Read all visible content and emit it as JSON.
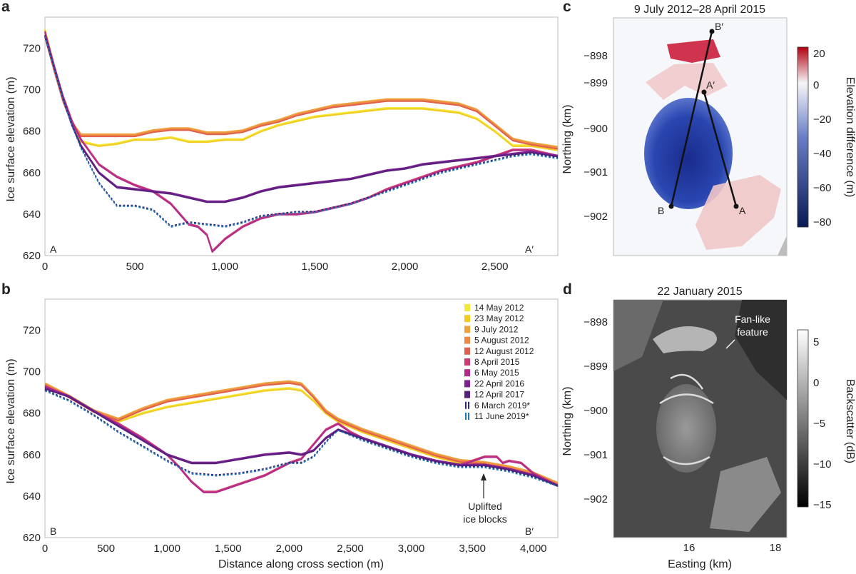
{
  "panels": {
    "a": {
      "letter": "a",
      "ylabel": "Ice surface elevation (m)",
      "start_label": "A",
      "end_label": "A′"
    },
    "b": {
      "letter": "b",
      "ylabel": "Ice surface elevation (m)",
      "xlabel": "Distance along cross section (m)",
      "start_label": "B",
      "end_label": "B′",
      "annotation": [
        "Uplifted",
        "ice blocks"
      ]
    },
    "c": {
      "letter": "c",
      "title": "9 July 2012–28 April 2015",
      "ylabel": "Northing (km)",
      "colorbar_label": "Elevation difference (m)",
      "yticks": [
        "−898",
        "−899",
        "−900",
        "−901",
        "−902"
      ],
      "colorbar_ticks": [
        "20",
        "0",
        "−20",
        "−40",
        "−60",
        "−80"
      ],
      "point_labels": {
        "A": "A",
        "A_prime": "A′",
        "B": "B",
        "B_prime": "B′"
      }
    },
    "d": {
      "letter": "d",
      "title": "22 January 2015",
      "ylabel": "Northing (km)",
      "xlabel": "Easting (km)",
      "colorbar_label": "Backscatter (dB)",
      "yticks": [
        "−898",
        "−899",
        "−900",
        "−901",
        "−902"
      ],
      "xticks": [
        "16",
        "18"
      ],
      "colorbar_ticks": [
        "5",
        "0",
        "−5",
        "−10",
        "−15"
      ],
      "annotation": [
        "Fan-like",
        "feature"
      ]
    }
  },
  "legend": [
    {
      "label": "14 May 2012",
      "color": "#f3e839",
      "style": "solid"
    },
    {
      "label": "23 May 2012",
      "color": "#f1cc1f",
      "style": "solid"
    },
    {
      "label": "9 July 2012",
      "color": "#f0a23a",
      "style": "solid"
    },
    {
      "label": "5 August 2012",
      "color": "#ec8a45",
      "style": "solid"
    },
    {
      "label": "12 August 2012",
      "color": "#e0604e",
      "style": "solid"
    },
    {
      "label": "8 April 2015",
      "color": "#cc3c72",
      "style": "solid"
    },
    {
      "label": "6 May 2015",
      "color": "#b22b8c",
      "style": "solid"
    },
    {
      "label": "22 April 2016",
      "color": "#7d2092",
      "style": "solid"
    },
    {
      "label": "12 April 2017",
      "color": "#58207d",
      "style": "solid"
    },
    {
      "label": "6 March 2019*",
      "color": "#2a2a7a",
      "style": "dashed"
    },
    {
      "label": "11 June 2019*",
      "color": "#1f78b4",
      "style": "dashed"
    }
  ],
  "chart_data": [
    {
      "panel": "a",
      "type": "line",
      "title": "",
      "xlabel": "",
      "ylabel": "Ice surface elevation (m)",
      "xlim": [
        0,
        2850
      ],
      "ylim": [
        620,
        735
      ],
      "xticks": [
        0,
        500,
        1000,
        1500,
        2000,
        2500
      ],
      "xtick_labels": [
        "0",
        "500",
        "1,000",
        "1,500",
        "2,000",
        "2,500"
      ],
      "yticks": [
        620,
        640,
        660,
        680,
        700,
        720
      ],
      "groups": [
        {
          "series": [
            "14 May 2012",
            "23 May 2012"
          ],
          "x": [
            0,
            50,
            100,
            150,
            200,
            300,
            400,
            500,
            600,
            700,
            800,
            900,
            1000,
            1100,
            1200,
            1300,
            1400,
            1500,
            1600,
            1700,
            1800,
            1900,
            2000,
            2100,
            2200,
            2300,
            2400,
            2500,
            2600,
            2700,
            2850
          ],
          "y": [
            729,
            712,
            697,
            685,
            675,
            673,
            674,
            676,
            676,
            677,
            675,
            675,
            676,
            676,
            680,
            683,
            685,
            687,
            688,
            689,
            690,
            691,
            691,
            691,
            690,
            689,
            686,
            680,
            673,
            673,
            671
          ]
        },
        {
          "series": [
            "9 July 2012",
            "5 August 2012",
            "12 August 2012"
          ],
          "x": [
            0,
            50,
            100,
            150,
            200,
            300,
            400,
            500,
            600,
            700,
            800,
            900,
            1000,
            1100,
            1200,
            1300,
            1400,
            1500,
            1600,
            1700,
            1800,
            1900,
            2000,
            2100,
            2200,
            2300,
            2400,
            2500,
            2600,
            2700,
            2850
          ],
          "y": [
            726,
            710,
            695,
            684,
            678,
            678,
            678,
            678,
            680,
            681,
            681,
            679,
            679,
            680,
            683,
            685,
            688,
            690,
            692,
            693,
            694,
            695,
            695,
            695,
            694,
            693,
            690,
            683,
            676,
            674,
            672
          ]
        },
        {
          "series": [
            "8 April 2015",
            "6 May 2015"
          ],
          "x": [
            0,
            50,
            100,
            150,
            200,
            300,
            400,
            500,
            600,
            700,
            800,
            850,
            900,
            930,
            1000,
            1100,
            1200,
            1300,
            1400,
            1500,
            1600,
            1700,
            1800,
            1900,
            2000,
            2100,
            2200,
            2300,
            2400,
            2500,
            2600,
            2700,
            2850
          ],
          "y": [
            728,
            712,
            697,
            685,
            676,
            664,
            658,
            654,
            651,
            645,
            635,
            634,
            630,
            622,
            628,
            634,
            638,
            640,
            640,
            641,
            643,
            645,
            648,
            652,
            655,
            658,
            661,
            663,
            665,
            668,
            671,
            671,
            668
          ]
        },
        {
          "series": [
            "22 April 2016",
            "12 April 2017"
          ],
          "x": [
            0,
            50,
            100,
            150,
            200,
            300,
            400,
            500,
            600,
            700,
            800,
            900,
            1000,
            1100,
            1200,
            1300,
            1400,
            1500,
            1600,
            1700,
            1800,
            1900,
            2000,
            2100,
            2200,
            2300,
            2400,
            2500,
            2600,
            2700,
            2850
          ],
          "y": [
            726,
            711,
            696,
            683,
            673,
            660,
            653,
            652,
            651,
            650,
            648,
            646,
            646,
            648,
            651,
            653,
            654,
            655,
            656,
            657,
            659,
            661,
            662,
            664,
            665,
            666,
            667,
            668,
            669,
            670,
            668
          ]
        },
        {
          "series": [
            "6 March 2019*",
            "11 June 2019*"
          ],
          "x": [
            0,
            50,
            100,
            150,
            200,
            300,
            400,
            500,
            600,
            700,
            800,
            900,
            1000,
            1100,
            1200,
            1300,
            1400,
            1500,
            1600,
            1700,
            1800,
            1900,
            2000,
            2100,
            2200,
            2300,
            2400,
            2500,
            2600,
            2700,
            2850
          ],
          "y": [
            726,
            711,
            696,
            683,
            672,
            655,
            644,
            644,
            642,
            634,
            636,
            635,
            634,
            636,
            639,
            640,
            641,
            641,
            643,
            645,
            648,
            651,
            654,
            657,
            660,
            662,
            664,
            666,
            668,
            669,
            667
          ]
        }
      ]
    },
    {
      "panel": "b",
      "type": "line",
      "title": "",
      "xlabel": "Distance along cross section (m)",
      "ylabel": "Ice surface elevation (m)",
      "xlim": [
        0,
        4200
      ],
      "ylim": [
        620,
        735
      ],
      "xticks": [
        0,
        500,
        1000,
        1500,
        2000,
        2500,
        3000,
        3500,
        4000
      ],
      "xtick_labels": [
        "0",
        "500",
        "1,000",
        "1,500",
        "2,000",
        "2,500",
        "3,000",
        "3,500",
        "4,000"
      ],
      "yticks": [
        620,
        640,
        660,
        680,
        700,
        720
      ],
      "groups": [
        {
          "series": [
            "14 May 2012",
            "23 May 2012"
          ],
          "x": [
            0,
            200,
            400,
            600,
            800,
            1000,
            1200,
            1400,
            1600,
            1800,
            2000,
            2100,
            2200,
            2300,
            2400,
            2600,
            2800,
            3000,
            3200,
            3400,
            3600,
            3800,
            4000,
            4200
          ],
          "y": [
            694,
            688,
            681,
            676,
            680,
            683,
            685,
            687,
            689,
            691,
            692,
            691,
            686,
            680,
            676,
            671,
            667,
            663,
            659,
            656,
            655,
            653,
            650,
            646
          ]
        },
        {
          "series": [
            "9 July 2012",
            "5 August 2012",
            "12 August 2012"
          ],
          "x": [
            0,
            200,
            400,
            600,
            800,
            1000,
            1200,
            1400,
            1600,
            1800,
            2000,
            2100,
            2200,
            2300,
            2400,
            2600,
            2800,
            3000,
            3200,
            3400,
            3600,
            3800,
            4000,
            4200
          ],
          "y": [
            694,
            688,
            681,
            677,
            682,
            686,
            688,
            690,
            692,
            694,
            695,
            694,
            688,
            681,
            677,
            672,
            668,
            664,
            660,
            657,
            656,
            654,
            651,
            646
          ]
        },
        {
          "series": [
            "8 April 2015",
            "6 May 2015"
          ],
          "x": [
            0,
            200,
            400,
            600,
            800,
            1000,
            1100,
            1200,
            1300,
            1400,
            1600,
            1800,
            2000,
            2100,
            2200,
            2300,
            2400,
            2500,
            2600,
            2800,
            3000,
            3200,
            3400,
            3500,
            3600,
            3700,
            3750,
            3800,
            3900,
            4000,
            4200
          ],
          "y": [
            693,
            688,
            681,
            675,
            668,
            660,
            654,
            647,
            642,
            642,
            646,
            650,
            656,
            658,
            665,
            672,
            675,
            671,
            668,
            664,
            660,
            657,
            655,
            657,
            659,
            659,
            656,
            657,
            656,
            651,
            645
          ]
        },
        {
          "series": [
            "22 April 2016",
            "12 April 2017"
          ],
          "x": [
            0,
            200,
            400,
            600,
            800,
            1000,
            1200,
            1400,
            1600,
            1800,
            2000,
            2100,
            2200,
            2300,
            2400,
            2600,
            2800,
            3000,
            3200,
            3400,
            3600,
            3800,
            4000,
            4200
          ],
          "y": [
            692,
            688,
            681,
            674,
            667,
            660,
            656,
            656,
            658,
            660,
            661,
            660,
            662,
            668,
            672,
            668,
            664,
            660,
            657,
            655,
            655,
            653,
            650,
            645
          ]
        },
        {
          "series": [
            "6 March 2019*",
            "11 June 2019*"
          ],
          "x": [
            0,
            200,
            400,
            600,
            800,
            1000,
            1200,
            1400,
            1600,
            1800,
            2000,
            2100,
            2200,
            2300,
            2400,
            2600,
            2800,
            3000,
            3200,
            3400,
            3600,
            3800,
            4000,
            4200
          ],
          "y": [
            691,
            686,
            679,
            671,
            664,
            657,
            651,
            650,
            651,
            653,
            656,
            656,
            659,
            666,
            672,
            667,
            663,
            659,
            656,
            654,
            654,
            652,
            649,
            645
          ]
        }
      ]
    }
  ]
}
